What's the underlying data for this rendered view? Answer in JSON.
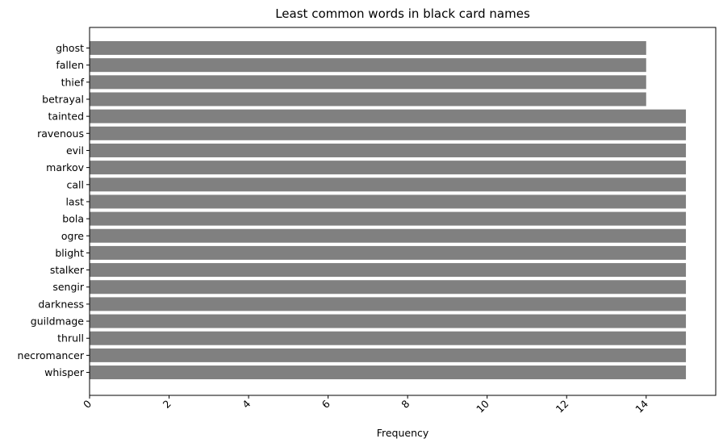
{
  "chart_data": {
    "type": "bar",
    "orientation": "horizontal",
    "title": "Least common words in black card names",
    "xlabel": "Frequency",
    "ylabel": "",
    "categories": [
      "ghost",
      "fallen",
      "thief",
      "betrayal",
      "tainted",
      "ravenous",
      "evil",
      "markov",
      "call",
      "last",
      "bola",
      "ogre",
      "blight",
      "stalker",
      "sengir",
      "darkness",
      "guildmage",
      "thrull",
      "necromancer",
      "whisper"
    ],
    "values": [
      14,
      14,
      14,
      14,
      15,
      15,
      15,
      15,
      15,
      15,
      15,
      15,
      15,
      15,
      15,
      15,
      15,
      15,
      15,
      15
    ],
    "xlim": [
      0,
      15.75
    ],
    "xticks": [
      "0",
      "2",
      "4",
      "6",
      "8",
      "10",
      "12",
      "14"
    ],
    "xtick_rotation": 45,
    "bar_color": "#808080",
    "grid": false
  }
}
